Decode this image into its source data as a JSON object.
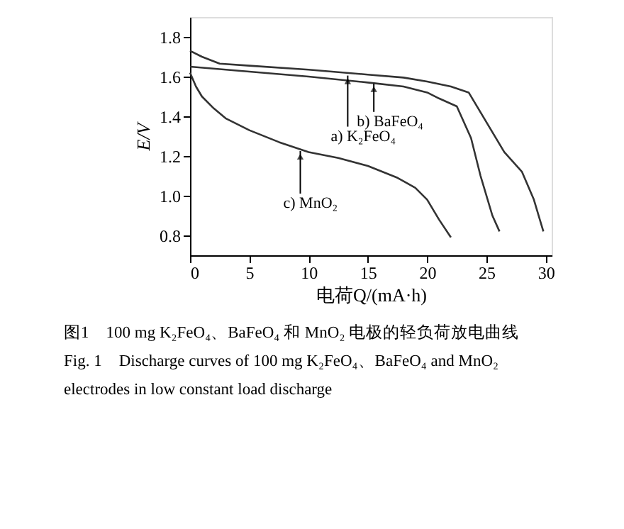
{
  "chart_data": {
    "type": "line",
    "xlabel": "电荷Q/(mA·h)",
    "ylabel": "E/V",
    "xlim": [
      0,
      30.5
    ],
    "ylim": [
      0.7,
      1.9
    ],
    "xticks": [
      0,
      5,
      10,
      15,
      20,
      25,
      30
    ],
    "yticks": [
      0.8,
      {
        "value": 1,
        "label": "1.0"
      },
      1.2,
      1.4,
      1.6,
      1.8
    ],
    "grid": false,
    "legend": false,
    "marker": "none",
    "line_style": "solid",
    "series": [
      {
        "color": "#333333",
        "x": [
          0,
          1,
          2.5,
          5,
          10,
          15,
          18,
          20,
          22,
          23.5,
          24,
          25,
          26.5,
          28,
          29,
          29.8
        ],
        "values": [
          1.73,
          1.7,
          1.665,
          1.655,
          1.635,
          1.61,
          1.595,
          1.575,
          1.55,
          1.52,
          1.47,
          1.37,
          1.22,
          1.12,
          0.98,
          0.82
        ]
      },
      {
        "color": "#333333",
        "x": [
          0,
          5,
          10,
          15,
          18,
          20,
          21,
          22.5,
          23.7,
          24.5,
          25.5,
          26.1
        ],
        "values": [
          1.65,
          1.625,
          1.6,
          1.57,
          1.55,
          1.52,
          1.49,
          1.45,
          1.29,
          1.1,
          0.9,
          0.82
        ]
      },
      {
        "color": "#333333",
        "x": [
          0,
          0.5,
          1,
          2,
          3,
          5,
          7.5,
          10,
          12.5,
          15,
          17.5,
          19,
          20,
          21,
          22
        ],
        "values": [
          1.62,
          1.55,
          1.5,
          1.44,
          1.39,
          1.33,
          1.27,
          1.22,
          1.19,
          1.15,
          1.09,
          1.04,
          0.98,
          0.88,
          0.79
        ]
      }
    ],
    "annotations": [
      {
        "text": "a) K₂FeO₄",
        "x": 13.3,
        "y": 1.605
      },
      {
        "text": "b) BaFeO₄",
        "x": 15.5,
        "y": 1.565
      },
      {
        "text": "c) MnO₂",
        "x": 9.3,
        "y": 1.225
      },
      "图1　100 mg K₂FeO₄、BaFeO₄ 和 MnO₂ 电极的轻负荷放电曲线",
      "Fig. 1　Discharge curves of 100 mg K₂FeO₄、BaFeO₄ and MnO₂ electrodes in low constant load discharge"
    ]
  }
}
